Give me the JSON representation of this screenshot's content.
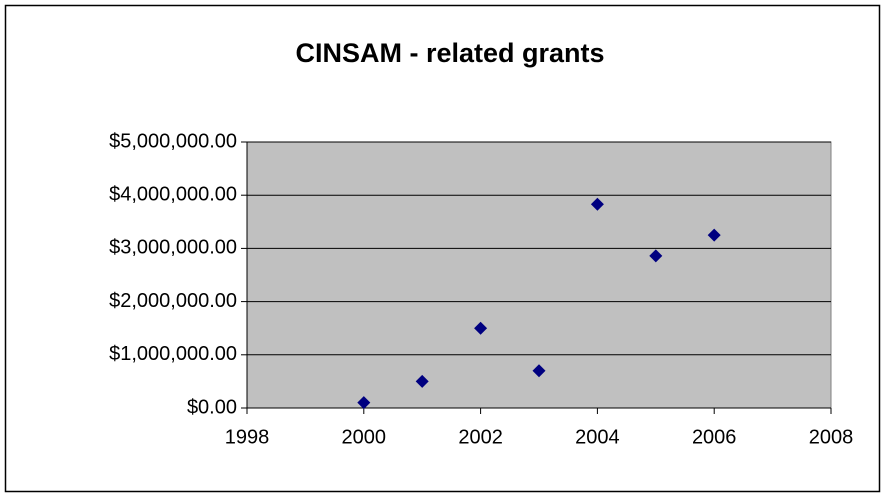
{
  "chart_data": {
    "type": "scatter",
    "title": "CINSAM - related grants",
    "series": [
      {
        "name": null,
        "color": "#000080",
        "x": [
          2000,
          2001,
          2002,
          2003,
          2004,
          2005,
          2006
        ],
        "values": [
          100000,
          500000,
          1500000,
          700000,
          3830000,
          2860000,
          3250000
        ]
      }
    ],
    "xlim": [
      1998,
      2008
    ],
    "xticks": [
      1998,
      2000,
      2002,
      2004,
      2006,
      2008
    ],
    "ylim": [
      0,
      5000000
    ],
    "yticks": [
      {
        "value": 0,
        "label": "$0.00"
      },
      {
        "value": 1000000,
        "label": "$1,000,000.00"
      },
      {
        "value": 2000000,
        "label": "$2,000,000.00"
      },
      {
        "value": 3000000,
        "label": "$3,000,000.00"
      },
      {
        "value": 4000000,
        "label": "$4,000,000.00"
      },
      {
        "value": 5000000,
        "label": "$5,000,000.00"
      }
    ],
    "grid": true,
    "plot_background": "#c0c0c0"
  }
}
